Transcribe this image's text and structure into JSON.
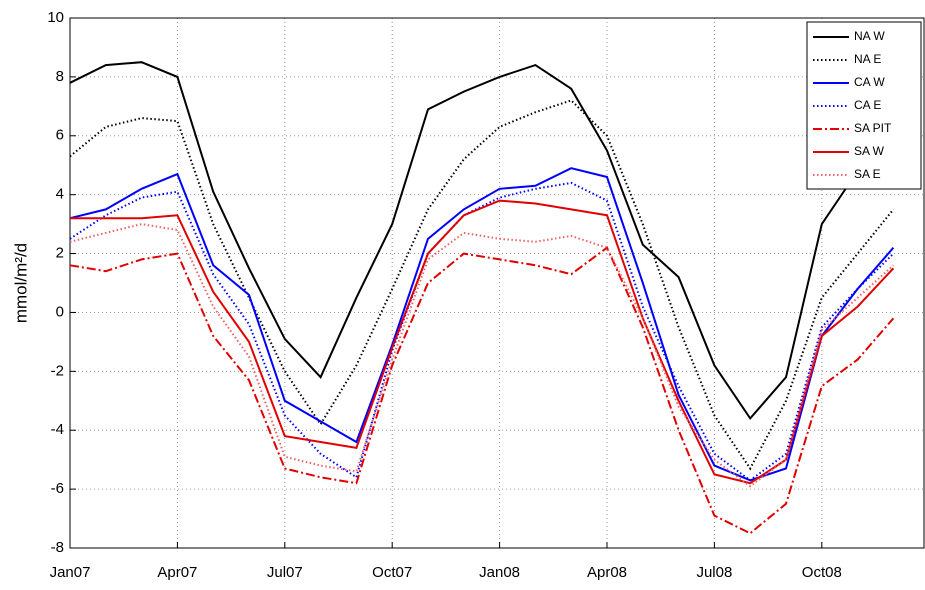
{
  "chart_data": {
    "type": "line",
    "y_label": "mmol/m²/d",
    "categories": [
      "Jan07",
      null,
      null,
      "Apr07",
      null,
      null,
      "Jul07",
      null,
      null,
      "Oct07",
      null,
      null,
      "Jan08",
      null,
      null,
      "Apr08",
      null,
      null,
      "Jul08",
      null,
      null,
      "Oct08",
      null,
      null
    ],
    "ylim": [
      -8,
      10
    ],
    "yticks": [
      -8,
      -6,
      -4,
      -2,
      0,
      2,
      4,
      6,
      8,
      10
    ],
    "grid": true,
    "legend": "top-right",
    "series": [
      {
        "name": "NA W",
        "color": "#000000",
        "style": "solid",
        "values": [
          7.8,
          8.4,
          8.5,
          8.0,
          4.1,
          1.5,
          -0.9,
          -2.2,
          0.5,
          3.0,
          6.9,
          7.5,
          8.0,
          8.4,
          7.6,
          5.5,
          2.3,
          1.2,
          -1.8,
          -3.6,
          -2.2,
          3.0,
          4.8,
          6.5
        ]
      },
      {
        "name": "NA E",
        "color": "#000000",
        "style": "dotted",
        "values": [
          5.3,
          6.3,
          6.6,
          6.5,
          3.0,
          0.5,
          -2.0,
          -3.8,
          -1.8,
          0.8,
          3.5,
          5.2,
          6.3,
          6.8,
          7.2,
          6.0,
          3.0,
          -0.5,
          -3.5,
          -5.3,
          -3.0,
          0.5,
          2.0,
          3.5
        ]
      },
      {
        "name": "CA W",
        "color": "#0000ff",
        "style": "solid",
        "values": [
          3.2,
          3.5,
          4.2,
          4.7,
          1.6,
          0.6,
          -3.0,
          -3.7,
          -4.4,
          -1.1,
          2.5,
          3.5,
          4.2,
          4.3,
          4.9,
          4.6,
          1.0,
          -2.8,
          -5.2,
          -5.7,
          -5.3,
          -0.8,
          0.8,
          2.2
        ]
      },
      {
        "name": "CA E",
        "color": "#0000ff",
        "style": "dotted",
        "values": [
          2.5,
          3.3,
          3.9,
          4.1,
          1.3,
          -0.4,
          -3.5,
          -4.8,
          -5.6,
          -1.3,
          2.0,
          3.3,
          3.9,
          4.2,
          4.4,
          3.8,
          0.2,
          -2.5,
          -4.8,
          -5.7,
          -4.8,
          -0.5,
          0.8,
          2.0
        ]
      },
      {
        "name": "SA PIT",
        "color": "#e00000",
        "style": "dashdot",
        "values": [
          1.6,
          1.4,
          1.8,
          2.0,
          -0.8,
          -2.3,
          -5.3,
          -5.6,
          -5.8,
          -1.8,
          1.0,
          2.0,
          1.8,
          1.6,
          1.3,
          2.2,
          -0.5,
          -4.0,
          -6.9,
          -7.5,
          -6.5,
          -2.5,
          -1.6,
          -0.2
        ]
      },
      {
        "name": "SA W",
        "color": "#e00000",
        "style": "solid",
        "values": [
          3.2,
          3.2,
          3.2,
          3.3,
          0.7,
          -1.0,
          -4.2,
          -4.4,
          -4.6,
          -1.2,
          2.0,
          3.3,
          3.8,
          3.7,
          3.5,
          3.3,
          -0.2,
          -3.0,
          -5.5,
          -5.8,
          -5.0,
          -0.8,
          0.2,
          1.5
        ]
      },
      {
        "name": "SA E",
        "color": "#f06060",
        "style": "dotted",
        "values": [
          2.4,
          2.7,
          3.0,
          2.8,
          0.2,
          -1.5,
          -4.9,
          -5.2,
          -5.4,
          -1.6,
          1.8,
          2.7,
          2.5,
          2.4,
          2.6,
          2.2,
          -0.2,
          -3.2,
          -5.0,
          -5.9,
          -5.0,
          -0.6,
          0.5,
          1.6
        ]
      }
    ]
  }
}
